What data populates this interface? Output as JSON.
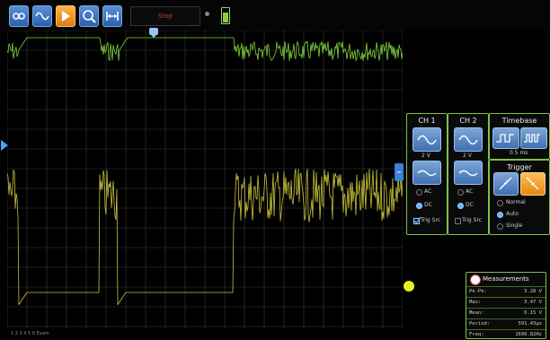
{
  "toolbar": {
    "buttons": [
      {
        "name": "infinity-icon"
      },
      {
        "name": "wave-icon"
      },
      {
        "name": "play-icon"
      },
      {
        "name": "zoom-icon"
      },
      {
        "name": "fit-width-icon"
      }
    ],
    "status": "Stop",
    "battery_level": 0.7
  },
  "channels": {
    "ch1": {
      "title": "CH 1",
      "volts": "2 V",
      "ac": "AC",
      "dc": "DC",
      "trig_src": "Trig Src",
      "coupling": "DC",
      "trig_src_checked": true,
      "color": "#7fd33a"
    },
    "ch2": {
      "title": "CH 2",
      "volts": "2 V",
      "ac": "AC",
      "dc": "DC",
      "trig_src": "Trig Src",
      "coupling": "DC",
      "trig_src_checked": false,
      "color": "#c7c23a"
    }
  },
  "timebase": {
    "title": "Timebase",
    "value": "0.5 ms"
  },
  "trigger": {
    "title": "Trigger",
    "modes": [
      "Normal",
      "Auto",
      "Single"
    ],
    "selected": "Auto"
  },
  "measurements": {
    "title": "Measurements",
    "rows": [
      {
        "label": "Pk-Pk:",
        "value": "3.28 V"
      },
      {
        "label": "Max:",
        "value": "3.47 V"
      },
      {
        "label": "Mean:",
        "value": "0.15 V"
      },
      {
        "label": "Period:",
        "value": "591.43µs"
      },
      {
        "label": "Freq:",
        "value": "1690.82Hz"
      }
    ]
  },
  "footer": {
    "info": "1 2 3 4 5 6 Exam"
  },
  "colors": {
    "grid": "#3a3a3a",
    "ch1": "#7fd33a",
    "ch2": "#c7c23a",
    "accent": "#7fc24a"
  }
}
